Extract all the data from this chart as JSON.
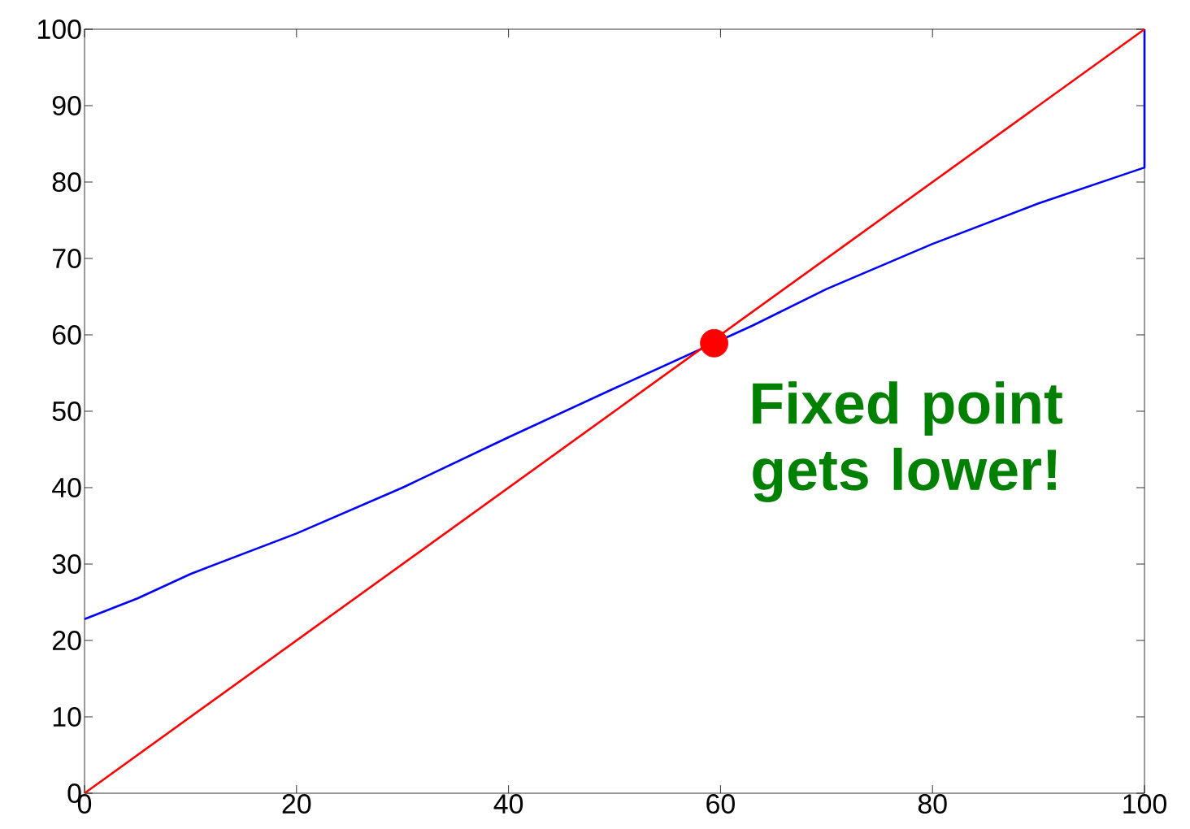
{
  "chart_data": {
    "type": "line",
    "series": [
      {
        "color": "#0000ff",
        "x": [
          0,
          5,
          10,
          20,
          30,
          40,
          50,
          63,
          70,
          80,
          90,
          100,
          100
        ],
        "values": [
          22.8,
          25.5,
          28.7,
          34,
          40,
          46.6,
          53,
          61.2,
          66,
          71.9,
          77.2,
          81.9,
          100
        ]
      },
      {
        "color": "#ff0000",
        "x": [
          0,
          100
        ],
        "values": [
          0,
          100
        ]
      },
      {
        "type": "scatter",
        "marker": "circle",
        "color": "#ff0000",
        "x": [
          59.4
        ],
        "values": [
          58.9
        ]
      }
    ],
    "xlim": [
      0,
      100
    ],
    "ylim": [
      0,
      100
    ],
    "xticks": [
      0,
      20,
      40,
      60,
      80,
      100
    ],
    "yticks": [
      0,
      10,
      20,
      30,
      40,
      50,
      60,
      70,
      80,
      90,
      100
    ],
    "annotations": [
      "Fixed point gets lower!"
    ]
  }
}
